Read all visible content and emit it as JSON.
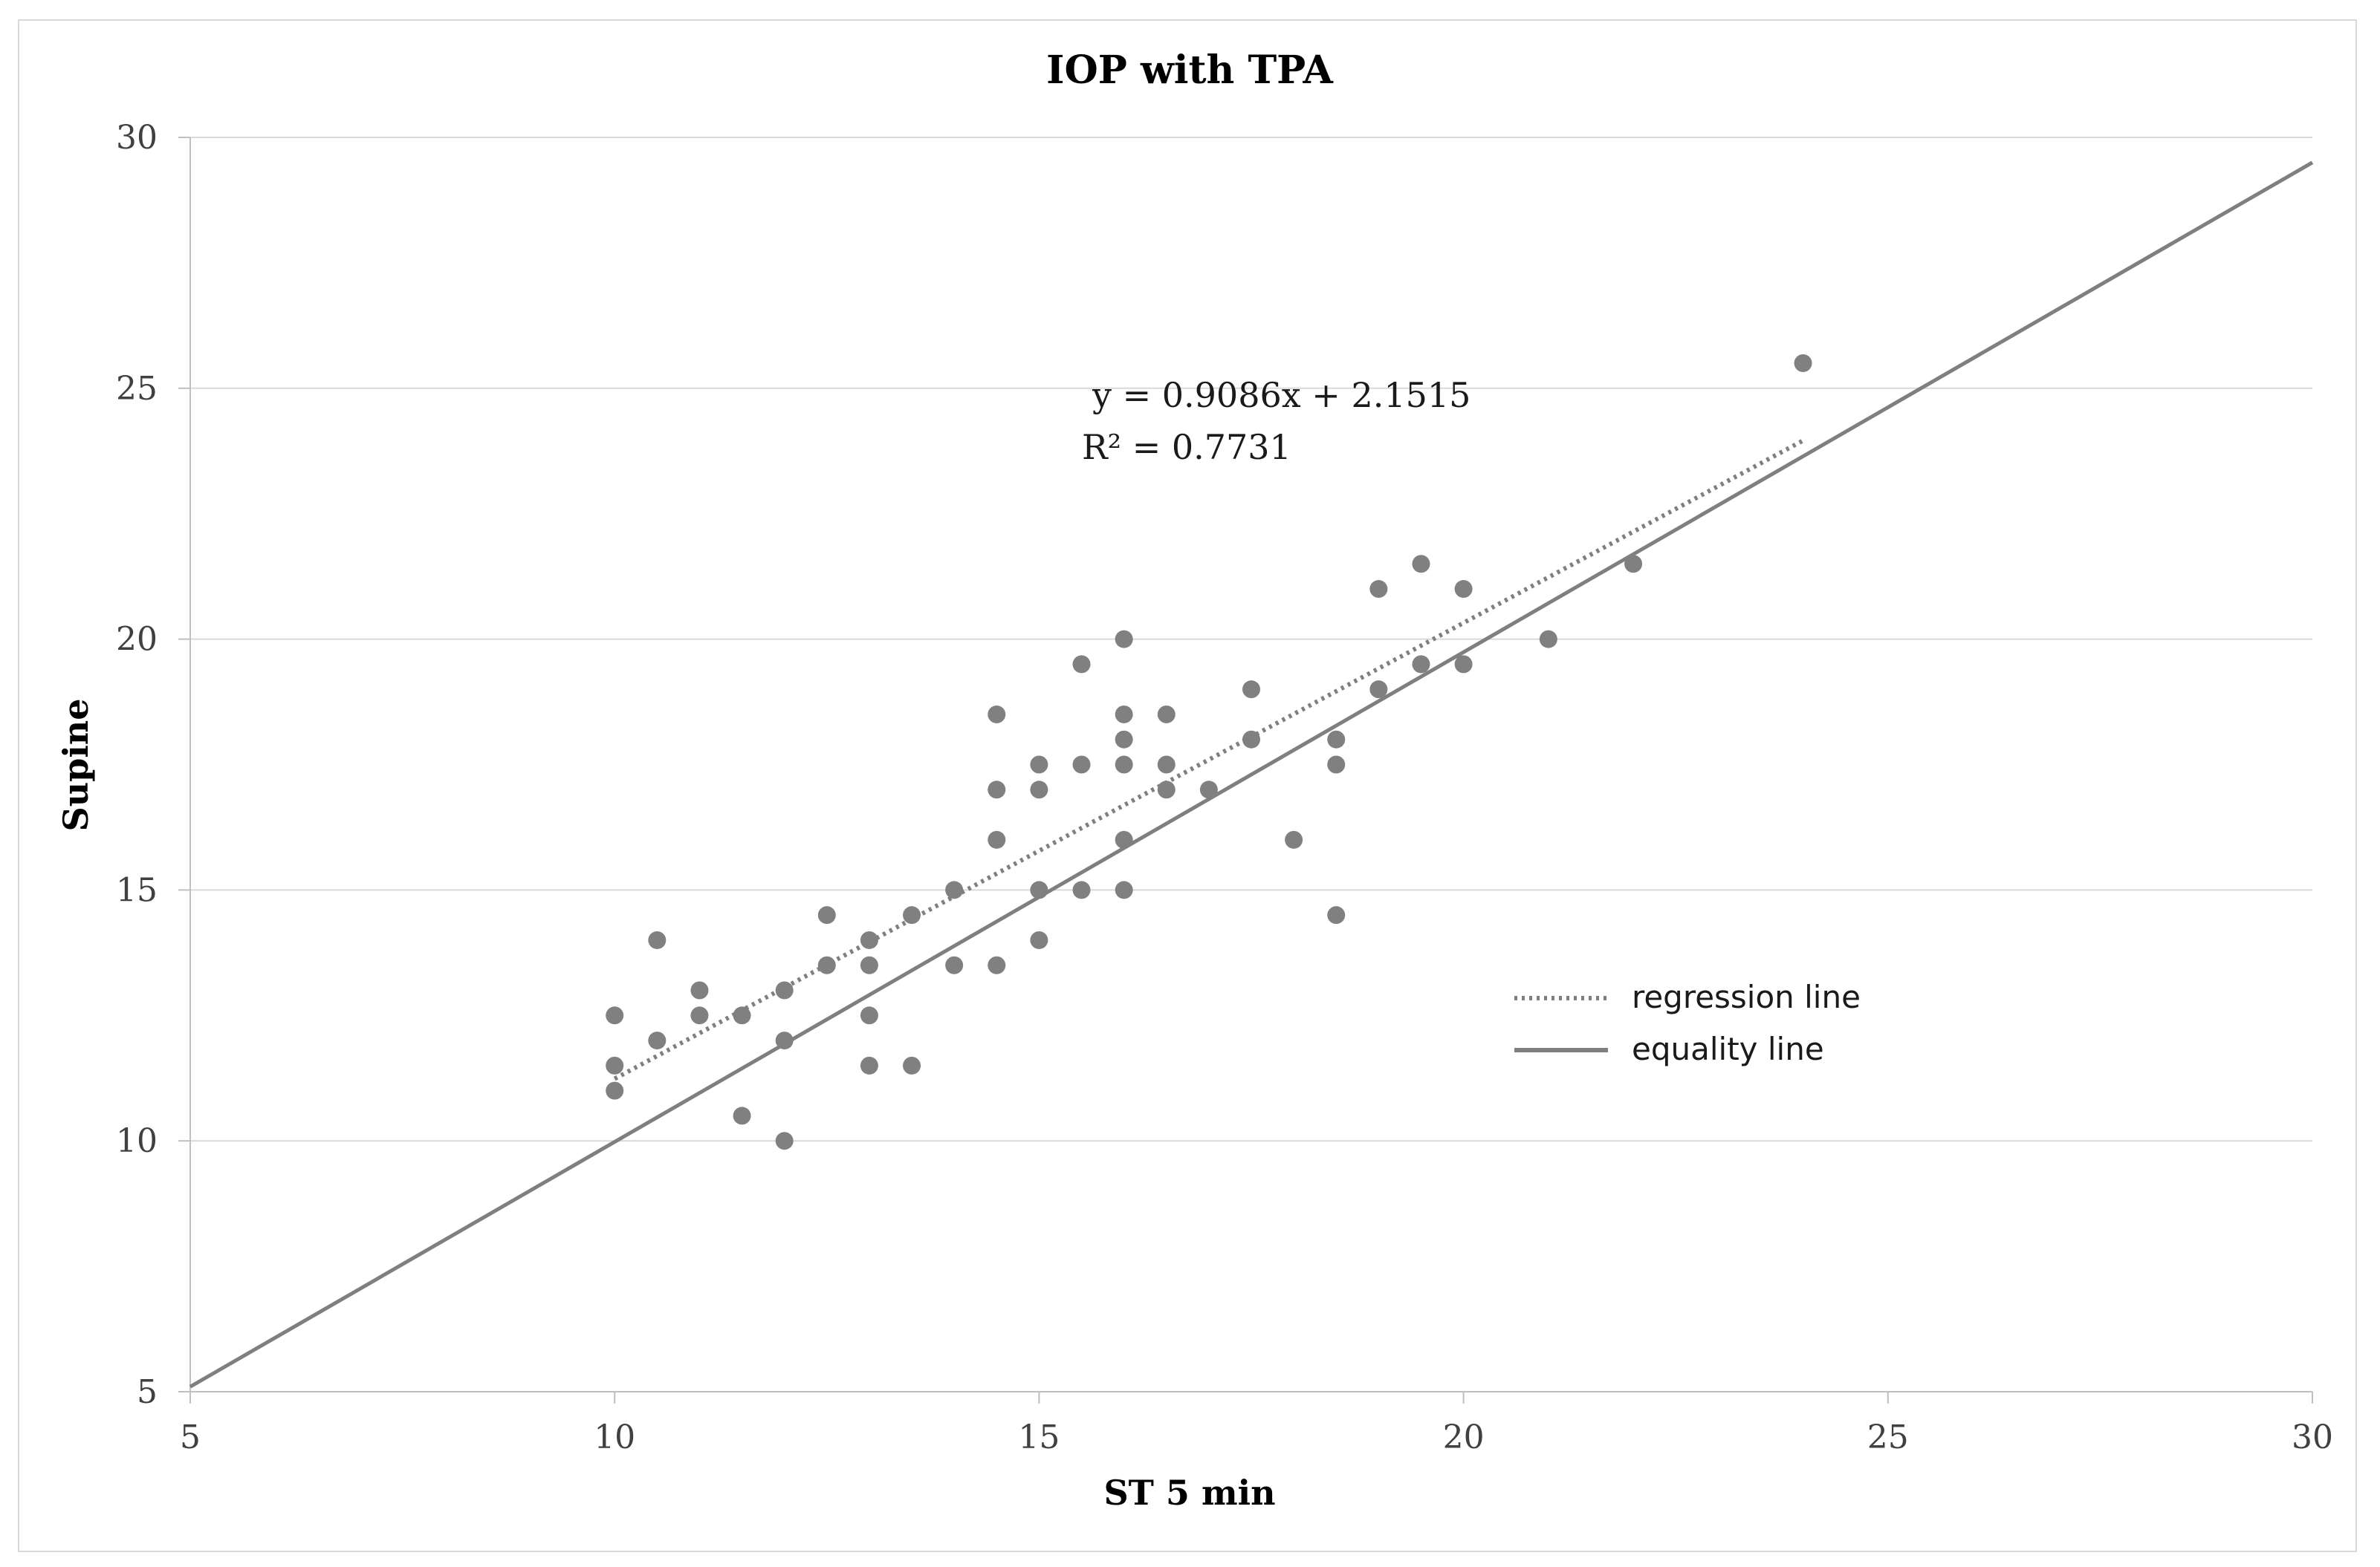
{
  "chart_data": {
    "type": "scatter",
    "title": "IOP with TPA",
    "xlabel": "ST 5 min",
    "ylabel": "Supine",
    "xlim": [
      5,
      30
    ],
    "ylim": [
      5,
      30
    ],
    "xticks": [
      5,
      10,
      15,
      20,
      25,
      30
    ],
    "yticks": [
      5,
      10,
      15,
      20,
      25,
      30
    ],
    "grid": "horizontal",
    "points": [
      [
        10,
        12.5
      ],
      [
        10,
        11.5
      ],
      [
        10,
        11
      ],
      [
        10.5,
        14
      ],
      [
        10.5,
        12
      ],
      [
        11,
        13
      ],
      [
        11,
        12.5
      ],
      [
        11.5,
        12.5
      ],
      [
        11.5,
        10.5
      ],
      [
        12,
        13
      ],
      [
        12,
        12
      ],
      [
        12,
        10
      ],
      [
        12.5,
        14.5
      ],
      [
        12.5,
        13.5
      ],
      [
        13,
        14
      ],
      [
        13,
        13.5
      ],
      [
        13,
        12.5
      ],
      [
        13,
        11.5
      ],
      [
        13.5,
        14.5
      ],
      [
        13.5,
        11.5
      ],
      [
        14,
        15
      ],
      [
        14,
        13.5
      ],
      [
        14.5,
        18.5
      ],
      [
        14.5,
        17
      ],
      [
        14.5,
        16
      ],
      [
        14.5,
        13.5
      ],
      [
        15,
        17.5
      ],
      [
        15,
        17
      ],
      [
        15,
        15
      ],
      [
        15,
        14
      ],
      [
        15.5,
        19.5
      ],
      [
        15.5,
        17.5
      ],
      [
        15.5,
        15
      ],
      [
        16,
        20
      ],
      [
        16,
        18.5
      ],
      [
        16,
        18
      ],
      [
        16,
        17.5
      ],
      [
        16,
        16
      ],
      [
        16,
        15
      ],
      [
        16.5,
        18.5
      ],
      [
        16.5,
        17.5
      ],
      [
        16.5,
        17
      ],
      [
        17,
        17
      ],
      [
        17.5,
        19
      ],
      [
        17.5,
        18
      ],
      [
        18,
        16
      ],
      [
        18.5,
        18
      ],
      [
        18.5,
        17.5
      ],
      [
        18.5,
        14.5
      ],
      [
        19,
        21
      ],
      [
        19,
        19
      ],
      [
        19.5,
        21.5
      ],
      [
        19.5,
        19.5
      ],
      [
        20,
        21
      ],
      [
        20,
        19.5
      ],
      [
        21,
        20
      ],
      [
        22,
        21.5
      ],
      [
        24,
        25.5
      ]
    ],
    "regression": {
      "slope": 0.9086,
      "intercept": 2.1515,
      "x_range": [
        10,
        24
      ]
    },
    "equality_line": {
      "x_range": [
        5,
        30
      ]
    },
    "equation_label": "y = 0.9086x + 2.1515",
    "r2_label": "R² = 0.7731",
    "legend": {
      "position": "right-middle",
      "entries": [
        {
          "label": "regression line",
          "style": "dotted"
        },
        {
          "label": "equality line",
          "style": "solid"
        }
      ]
    },
    "colors": {
      "marker": "#808080",
      "line": "#7f7f7f",
      "grid": "#d9d9d9"
    }
  }
}
